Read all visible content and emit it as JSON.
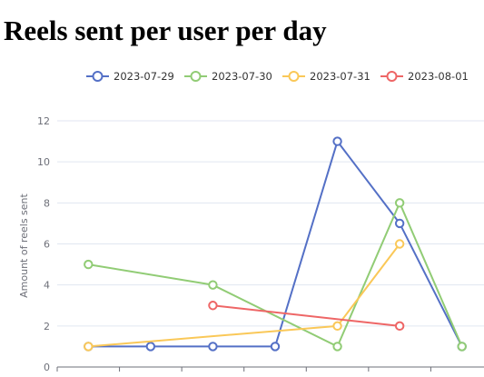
{
  "page": {
    "title": "Reels sent per user per day"
  },
  "chart_data": {
    "type": "line",
    "title": "Reels sent per user per day",
    "xlabel": "",
    "ylabel": "Amount of reels sent",
    "ylim": [
      0,
      12
    ],
    "yticks": [
      0,
      2,
      4,
      6,
      8,
      10,
      12
    ],
    "x_index_count": 7,
    "grid": true,
    "legend_position": "top-center",
    "series": [
      {
        "name": "2023-07-29",
        "color": "#5470c6",
        "points": [
          {
            "x": 0,
            "y": 1
          },
          {
            "x": 1,
            "y": 1
          },
          {
            "x": 2,
            "y": 1
          },
          {
            "x": 3,
            "y": 1
          },
          {
            "x": 4,
            "y": 11
          },
          {
            "x": 5,
            "y": 7
          },
          {
            "x": 6,
            "y": 1
          }
        ]
      },
      {
        "name": "2023-07-30",
        "color": "#91cc75",
        "points": [
          {
            "x": 0,
            "y": 5
          },
          {
            "x": 2,
            "y": 4
          },
          {
            "x": 4,
            "y": 1
          },
          {
            "x": 5,
            "y": 8
          },
          {
            "x": 6,
            "y": 1
          }
        ]
      },
      {
        "name": "2023-07-31",
        "color": "#fac858",
        "points": [
          {
            "x": 0,
            "y": 1
          },
          {
            "x": 4,
            "y": 2
          },
          {
            "x": 5,
            "y": 6
          }
        ]
      },
      {
        "name": "2023-08-01",
        "color": "#ee6666",
        "points": [
          {
            "x": 2,
            "y": 3
          },
          {
            "x": 5,
            "y": 2
          }
        ]
      }
    ]
  }
}
